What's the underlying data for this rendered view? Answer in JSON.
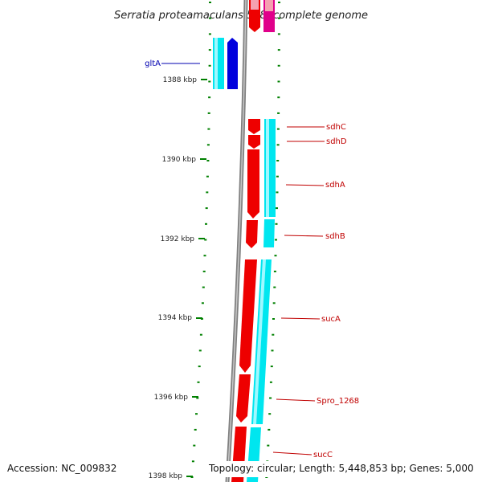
{
  "title": "Serratia proteamaculans 568, complete genome",
  "footer": {
    "accession": "Accession: NC_009832",
    "topology": "Topology: circular; Length: 5,448,853 bp; Genes: 5,000"
  },
  "kbp_labels": [
    "1388 kbp",
    "1390 kbp",
    "1392 kbp",
    "1394 kbp",
    "1396 kbp",
    "1398 kbp"
  ],
  "genes": [
    {
      "name": "gltA",
      "strand": "reverse"
    },
    {
      "name": "sdhC",
      "strand": "forward"
    },
    {
      "name": "sdhD",
      "strand": "forward"
    },
    {
      "name": "sdhA",
      "strand": "forward"
    },
    {
      "name": "sdhB",
      "strand": "forward"
    },
    {
      "name": "sucA",
      "strand": "forward"
    },
    {
      "name": "Spro_1268",
      "strand": "forward"
    },
    {
      "name": "sucC",
      "strand": "forward"
    }
  ],
  "colors": {
    "forward": "#ee0000",
    "forward_cds": "#00e6ef",
    "reverse": "#0000dd",
    "reverse_cds": "#00e6ef",
    "top_feature_light": "#f5a0b0",
    "top_feature_dark": "#e0008a",
    "backbone": "#808080",
    "tick": "#008000",
    "label_red": "#c00000",
    "label_blue": "#0000b0"
  }
}
